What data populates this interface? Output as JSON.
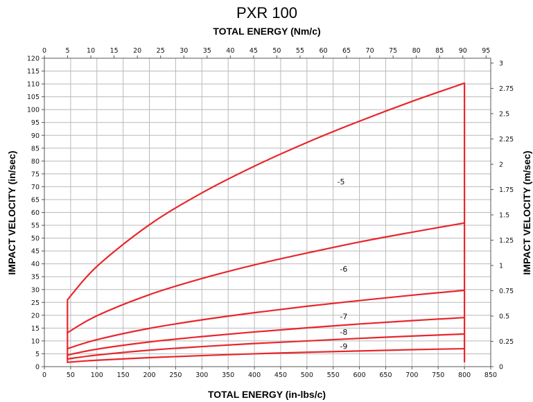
{
  "chart_data": {
    "type": "line",
    "title": "PXR 100",
    "top_xlabel": "TOTAL ENERGY (Nm/c)",
    "xlabel": "TOTAL ENERGY (in-lbs/c)",
    "ylabel": "IMPACT VELOCITY (in/sec)",
    "right_ylabel": "IMPACT VELOCITY (m/sec)",
    "xlim": [
      0,
      850
    ],
    "ylim": [
      0,
      120
    ],
    "xticks": [
      0,
      50,
      100,
      150,
      200,
      250,
      300,
      350,
      400,
      450,
      500,
      550,
      600,
      650,
      700,
      750,
      800,
      850
    ],
    "yticks": [
      0,
      5,
      10,
      15,
      20,
      25,
      30,
      35,
      40,
      45,
      50,
      55,
      60,
      65,
      70,
      75,
      80,
      85,
      90,
      95,
      100,
      105,
      110,
      115,
      120
    ],
    "top_xlim": [
      0,
      96
    ],
    "top_xticks": [
      0,
      5,
      10,
      15,
      20,
      25,
      30,
      35,
      40,
      45,
      50,
      55,
      60,
      65,
      70,
      75,
      80,
      85,
      90,
      95
    ],
    "right_ylim": [
      0,
      3.048
    ],
    "right_yticks": [
      0,
      0.25,
      0.5,
      0.75,
      1,
      1.25,
      1.5,
      1.75,
      2,
      2.25,
      2.5,
      2.75,
      3
    ],
    "right_ytick_labels": [
      "0",
      "0.25",
      "0.5",
      "0.75",
      "1",
      "1.25",
      "1.5",
      "1.75",
      "2",
      "2.25",
      "2.5",
      "2.75",
      "3"
    ],
    "grid": true,
    "series_color": "#e8262b",
    "envelope": {
      "x_min": 44,
      "x_max": 800,
      "min_velocity": 1.7,
      "max_velocity": 110.3
    },
    "series": [
      {
        "name": "-5",
        "label_at": [
          565,
          72
        ],
        "x": [
          44,
          100,
          200,
          300,
          400,
          500,
          600,
          700,
          800
        ],
        "values": [
          26.0,
          39.0,
          55.2,
          67.6,
          78.0,
          87.2,
          95.5,
          103.2,
          110.3
        ]
      },
      {
        "name": "-6",
        "label_at": [
          570,
          38
        ],
        "x": [
          44,
          100,
          200,
          300,
          400,
          500,
          600,
          700,
          800
        ],
        "values": [
          13.2,
          19.8,
          28.0,
          34.3,
          39.6,
          44.2,
          48.5,
          52.3,
          55.9
        ]
      },
      {
        "name": "-7",
        "label_at": [
          570,
          19.5
        ],
        "x": [
          44,
          100,
          200,
          300,
          400,
          500,
          600,
          700,
          800
        ],
        "values": [
          7.0,
          10.5,
          14.9,
          18.2,
          21.0,
          23.5,
          25.7,
          27.8,
          29.7
        ]
      },
      {
        "name": "-8",
        "label_at": [
          570,
          13.5
        ],
        "x": [
          44,
          100,
          200,
          300,
          400,
          500,
          600,
          700,
          800
        ],
        "values": [
          4.5,
          6.8,
          9.6,
          11.7,
          13.5,
          15.1,
          16.6,
          17.9,
          19.1
        ]
      },
      {
        "name": "-9",
        "label_at": [
          570,
          8
        ],
        "x": [
          44,
          100,
          200,
          300,
          400,
          500,
          600,
          700,
          800
        ],
        "values": [
          3.0,
          4.5,
          6.4,
          7.8,
          9.0,
          10.0,
          11.0,
          11.9,
          12.7
        ]
      },
      {
        "name": "",
        "x": [
          44,
          100,
          200,
          300,
          400,
          500,
          600,
          700,
          800
        ],
        "values": [
          1.7,
          2.5,
          3.5,
          4.3,
          5.0,
          5.6,
          6.1,
          6.6,
          7.0
        ]
      }
    ]
  }
}
